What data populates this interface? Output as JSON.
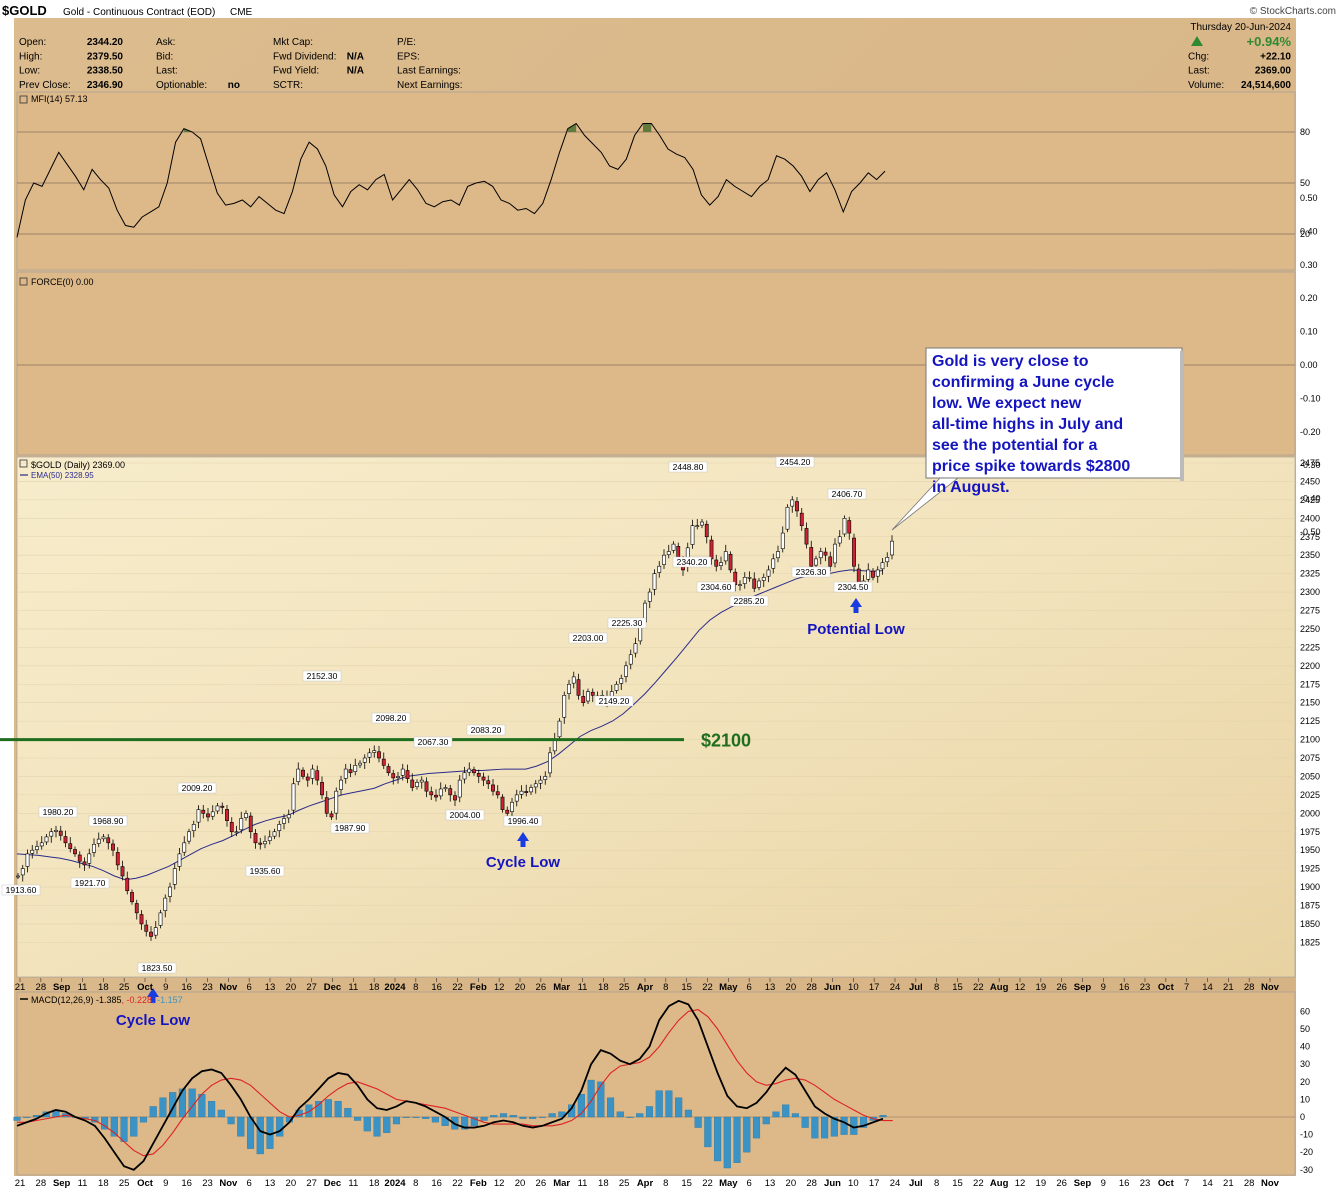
{
  "header": {
    "symbol": "$GOLD",
    "subtitle": "Gold - Continuous Contract (EOD)",
    "exchange": "CME",
    "watermark": "© StockCharts.com",
    "date": "Thursday  20-Jun-2024",
    "col1": [
      [
        "Open:",
        "2344.20"
      ],
      [
        "High:",
        "2379.50"
      ],
      [
        "Low:",
        "2338.50"
      ],
      [
        "Prev Close:",
        "2346.90"
      ]
    ],
    "col2": [
      [
        "Ask:",
        ""
      ],
      [
        "Bid:",
        ""
      ],
      [
        "Last:",
        ""
      ],
      [
        "Optionable:",
        "no"
      ]
    ],
    "col3": [
      [
        "Mkt Cap:",
        ""
      ],
      [
        "Fwd Dividend:",
        "N/A"
      ],
      [
        "Fwd Yield:",
        "N/A"
      ],
      [
        "SCTR:",
        ""
      ]
    ],
    "col4": [
      [
        "P/E:",
        ""
      ],
      [
        "EPS:",
        ""
      ],
      [
        "Last Earnings:",
        ""
      ],
      [
        "Next Earnings:",
        ""
      ]
    ],
    "right": [
      [
        "",
        "+0.94%"
      ],
      [
        "Chg:",
        "+22.10"
      ],
      [
        "Last:",
        "2369.00"
      ],
      [
        "Volume:",
        "24,514,600"
      ]
    ]
  },
  "colors": {
    "panel_bg": "#ddb98a",
    "price_bg": "#f2e6c2",
    "up_candle": "#ffffff",
    "down_candle": "#cc2233",
    "ema": "#2b2b8c",
    "macd": "#000000",
    "signal": "#dd2222",
    "histogram": "#3a93c4",
    "level_line": "#1e6e1e",
    "annotation_text": "#1515c0",
    "arrow": "#1a3be0"
  },
  "chart_data": [
    {
      "type": "line",
      "name": "mfi",
      "label": "MFI(14) 57.13",
      "ylim": [
        0,
        100
      ],
      "ticks": [
        "80",
        "50",
        "20"
      ],
      "x": [
        "2023-08-21",
        "2023-08-23",
        "2023-08-25",
        "2023-08-29",
        "2023-08-31",
        "2023-09-05",
        "2023-09-07",
        "2023-09-11",
        "2023-09-13",
        "2023-09-15",
        "2023-09-19",
        "2023-09-21",
        "2023-09-25",
        "2023-09-27",
        "2023-10-02",
        "2023-10-04",
        "2023-10-06",
        "2023-10-10",
        "2023-10-12",
        "2023-10-16",
        "2023-10-18",
        "2023-10-20",
        "2023-10-24",
        "2023-10-26",
        "2023-10-30",
        "2023-11-01",
        "2023-11-03",
        "2023-11-07",
        "2023-11-09",
        "2023-11-13",
        "2023-11-15",
        "2023-11-17",
        "2023-11-21",
        "2023-11-24",
        "2023-11-28",
        "2023-11-30",
        "2023-12-04",
        "2023-12-06",
        "2023-12-08",
        "2023-12-12",
        "2023-12-14",
        "2023-12-18",
        "2023-12-20",
        "2023-12-22",
        "2023-12-27",
        "2024-01-02",
        "2024-01-04",
        "2024-01-08",
        "2024-01-10",
        "2024-01-12",
        "2024-01-17",
        "2024-01-19",
        "2024-01-23",
        "2024-01-25",
        "2024-01-29",
        "2024-01-31",
        "2024-02-02",
        "2024-02-06",
        "2024-02-08",
        "2024-02-12",
        "2024-02-14",
        "2024-02-16",
        "2024-02-21",
        "2024-02-23",
        "2024-02-27",
        "2024-02-29",
        "2024-03-04",
        "2024-03-06",
        "2024-03-08",
        "2024-03-12",
        "2024-03-14",
        "2024-03-18",
        "2024-03-20",
        "2024-03-22",
        "2024-03-26",
        "2024-03-28",
        "2024-04-02",
        "2024-04-04",
        "2024-04-08",
        "2024-04-10",
        "2024-04-12",
        "2024-04-16",
        "2024-04-18",
        "2024-04-22",
        "2024-04-24",
        "2024-04-26",
        "2024-04-30",
        "2024-05-02",
        "2024-05-06",
        "2024-05-08",
        "2024-05-10",
        "2024-05-14",
        "2024-05-16",
        "2024-05-20",
        "2024-05-22",
        "2024-05-24",
        "2024-05-29",
        "2024-05-31",
        "2024-06-04",
        "2024-06-06",
        "2024-06-10",
        "2024-06-12",
        "2024-06-14",
        "2024-06-18",
        "2024-06-20"
      ],
      "values": [
        18,
        40,
        50,
        48,
        58,
        68,
        61,
        54,
        46,
        58,
        52,
        47,
        34,
        25,
        24,
        30,
        33,
        36,
        50,
        74,
        82,
        80,
        76,
        60,
        44,
        37,
        38,
        40,
        36,
        42,
        38,
        34,
        32,
        45,
        64,
        74,
        70,
        60,
        43,
        36,
        45,
        49,
        46,
        52,
        55,
        40,
        46,
        52,
        46,
        38,
        36,
        39,
        40,
        37,
        48,
        50,
        51,
        48,
        40,
        38,
        34,
        35,
        32,
        38,
        52,
        68,
        82,
        85,
        78,
        73,
        68,
        60,
        58,
        64,
        78,
        85,
        85,
        78,
        70,
        67,
        65,
        58,
        43,
        37,
        42,
        52,
        48,
        45,
        42,
        48,
        52,
        66,
        64,
        60,
        54,
        45,
        52,
        56,
        46,
        33,
        45,
        50,
        56,
        52,
        57
      ]
    },
    {
      "type": "line",
      "name": "force",
      "label": "FORCE(0) 0.00",
      "ylim": [
        -0.55,
        0.55
      ],
      "ticks": [
        "0.50",
        "0.40",
        "0.30",
        "0.20",
        "0.10",
        "0.00",
        "-0.10",
        "-0.20",
        "-0.30",
        "-0.40",
        "-0.50"
      ],
      "values": [
        0
      ]
    },
    {
      "type": "candlestick",
      "name": "price",
      "label": "$GOLD (Daily) 2369.00",
      "ema_label": "EMA(50) 2328.95",
      "ylim": [
        1815,
        2480
      ],
      "ticks": [
        "2475",
        "2450",
        "2425",
        "2400",
        "2375",
        "2350",
        "2325",
        "2300",
        "2275",
        "2250",
        "2225",
        "2200",
        "2175",
        "2150",
        "2125",
        "2100",
        "2075",
        "2050",
        "2025",
        "2000",
        "1975",
        "1950",
        "1925",
        "1900",
        "1875",
        "1850",
        "1825"
      ],
      "close_start": 1915,
      "closes": [
        1915,
        1925,
        1945,
        1950,
        1955,
        1960,
        1968,
        1975,
        1977,
        1970,
        1960,
        1952,
        1945,
        1935,
        1930,
        1945,
        1958,
        1965,
        1968,
        1960,
        1950,
        1930,
        1915,
        1895,
        1880,
        1865,
        1850,
        1840,
        1833,
        1845,
        1865,
        1885,
        1900,
        1925,
        1945,
        1960,
        1975,
        1985,
        2005,
        2000,
        1995,
        2002,
        2010,
        2008,
        1990,
        1975,
        1975,
        1993,
        2000,
        1975,
        1960,
        1958,
        1962,
        1968,
        1975,
        1985,
        1993,
        1998,
        2040,
        2060,
        2050,
        2045,
        2060,
        2045,
        2025,
        2000,
        1995,
        2030,
        2045,
        2060,
        2055,
        2065,
        2068,
        2075,
        2082,
        2085,
        2075,
        2065,
        2055,
        2048,
        2050,
        2060,
        2047,
        2035,
        2042,
        2045,
        2030,
        2025,
        2022,
        2033,
        2035,
        2025,
        2018,
        2045,
        2055,
        2060,
        2055,
        2050,
        2045,
        2040,
        2030,
        2025,
        2005,
        2000,
        2015,
        2025,
        2030,
        2028,
        2035,
        2040,
        2045,
        2050,
        2082,
        2100,
        2125,
        2160,
        2175,
        2185,
        2160,
        2150,
        2165,
        2160,
        2155,
        2160,
        2150,
        2165,
        2175,
        2183,
        2200,
        2215,
        2230,
        2255,
        2285,
        2300,
        2325,
        2335,
        2350,
        2355,
        2365,
        2345,
        2330,
        2360,
        2390,
        2390,
        2395,
        2375,
        2345,
        2335,
        2340,
        2355,
        2330,
        2310,
        2310,
        2320,
        2320,
        2305,
        2315,
        2320,
        2330,
        2345,
        2355,
        2380,
        2415,
        2425,
        2410,
        2390,
        2365,
        2335,
        2345,
        2355,
        2350,
        2335,
        2365,
        2375,
        2400,
        2380,
        2335,
        2310,
        2315,
        2330,
        2320,
        2330,
        2340,
        2347,
        2369
      ],
      "ema50": [
        1945,
        1944,
        1943,
        1941,
        1939,
        1936,
        1932,
        1928,
        1922,
        1915,
        1910,
        1912,
        1916,
        1922,
        1928,
        1936,
        1944,
        1952,
        1958,
        1963,
        1970,
        1978,
        1985,
        1990,
        1994,
        1997,
        2004,
        2010,
        2015,
        2020,
        2025,
        2028,
        2031,
        2034,
        2040,
        2045,
        2050,
        2052,
        2054,
        2055,
        2056,
        2057,
        2058,
        2058,
        2059,
        2060,
        2060,
        2060,
        2064,
        2070,
        2080,
        2092,
        2104,
        2112,
        2118,
        2125,
        2135,
        2148,
        2162,
        2178,
        2195,
        2212,
        2230,
        2248,
        2262,
        2272,
        2280,
        2286,
        2294,
        2300,
        2306,
        2312,
        2318,
        2322,
        2325,
        2325,
        2328,
        2330,
        2329,
        2328,
        2329
      ],
      "labels": [
        [
          "1913.60"
        ],
        [
          "1980.20"
        ],
        [
          "1921.70"
        ],
        [
          "1968.90"
        ],
        [
          "1823.50"
        ],
        [
          "2009.20"
        ],
        [
          "1935.60"
        ],
        [
          "2152.30"
        ],
        [
          "1987.90"
        ],
        [
          "2098.20"
        ],
        [
          "2067.30"
        ],
        [
          "2004.00"
        ],
        [
          "2083.20"
        ],
        [
          "1996.40"
        ],
        [
          "2203.00"
        ],
        [
          "2225.30"
        ],
        [
          "2149.20"
        ],
        [
          "2448.80"
        ],
        [
          "2340.20"
        ],
        [
          "2304.60"
        ],
        [
          "2285.20"
        ],
        [
          "2454.20"
        ],
        [
          "2326.30"
        ],
        [
          "2406.70"
        ],
        [
          "2304.50"
        ]
      ],
      "level_label": "$2100",
      "level_value": 2100,
      "callouts": [
        "Cycle Low",
        "Cycle Low",
        "Potential Low"
      ],
      "annotation": "Gold is very close to confirming a June cycle low. We expect new all-time highs in July and see the potential for a price spike towards $2800 in August."
    },
    {
      "type": "line",
      "name": "macd",
      "label_prefix": "MACD(12,26,9) -1.385",
      "label_signal": ", -0.228",
      "label_hist": ", -1.157",
      "ylim": [
        -32,
        68
      ],
      "ticks": [
        "60",
        "50",
        "40",
        "30",
        "20",
        "10",
        "0",
        "-10",
        "-20",
        "-30"
      ],
      "macd": [
        -5,
        -3,
        -1,
        2,
        4,
        3,
        0,
        -2,
        -5,
        -12,
        -20,
        -28,
        -30,
        -25,
        -15,
        -5,
        5,
        15,
        22,
        26,
        27,
        25,
        18,
        10,
        0,
        -8,
        -10,
        -8,
        -3,
        5,
        10,
        16,
        22,
        25,
        24,
        18,
        10,
        5,
        4,
        6,
        9,
        8,
        6,
        3,
        0,
        -4,
        -6,
        -6,
        -5,
        -3,
        -2,
        -3,
        -5,
        -6,
        -5,
        -3,
        -1,
        5,
        15,
        30,
        38,
        36,
        32,
        30,
        33,
        40,
        55,
        63,
        66,
        64,
        55,
        40,
        25,
        12,
        6,
        5,
        8,
        14,
        22,
        28,
        24,
        15,
        6,
        2,
        -1,
        -3,
        -6,
        -5,
        -3,
        -1
      ],
      "signal": [
        -3,
        -3,
        -2,
        -1,
        0,
        1,
        0,
        -1,
        -2,
        -5,
        -9,
        -14,
        -19,
        -22,
        -21,
        -16,
        -9,
        -1,
        6,
        13,
        18,
        21,
        22,
        21,
        18,
        13,
        8,
        3,
        0,
        1,
        3,
        7,
        12,
        16,
        19,
        20,
        18,
        16,
        13,
        10,
        9,
        8,
        7,
        6,
        5,
        3,
        1,
        -1,
        -3,
        -4,
        -4,
        -4,
        -4,
        -5,
        -5,
        -5,
        -4,
        -2,
        2,
        9,
        18,
        25,
        29,
        30,
        31,
        34,
        40,
        48,
        55,
        60,
        61,
        57,
        50,
        41,
        32,
        25,
        20,
        18,
        19,
        21,
        22,
        21,
        18,
        14,
        10,
        7,
        4,
        1,
        -1,
        -2,
        -2
      ],
      "tick_labels": [
        "21",
        "28",
        "Sep",
        "11",
        "18",
        "25",
        "Oct",
        "9",
        "16",
        "23",
        "Nov",
        "6",
        "13",
        "20",
        "27",
        "Dec",
        "11",
        "18",
        "2024",
        "8",
        "16",
        "22",
        "Feb",
        "12",
        "20",
        "26",
        "Mar",
        "11",
        "18",
        "25",
        "Apr",
        "8",
        "15",
        "22",
        "May",
        "6",
        "13",
        "20",
        "28",
        "Jun",
        "10",
        "17",
        "24",
        "Jul",
        "8",
        "15",
        "22",
        "Aug",
        "12",
        "19",
        "26",
        "Sep",
        "9",
        "16",
        "23",
        "Oct",
        "7",
        "14",
        "21",
        "28",
        "Nov"
      ],
      "bold_ticks": [
        "Sep",
        "Oct",
        "Nov",
        "Dec",
        "2024",
        "Feb",
        "Mar",
        "Apr",
        "May",
        "Jun",
        "Jul",
        "Aug"
      ]
    }
  ]
}
